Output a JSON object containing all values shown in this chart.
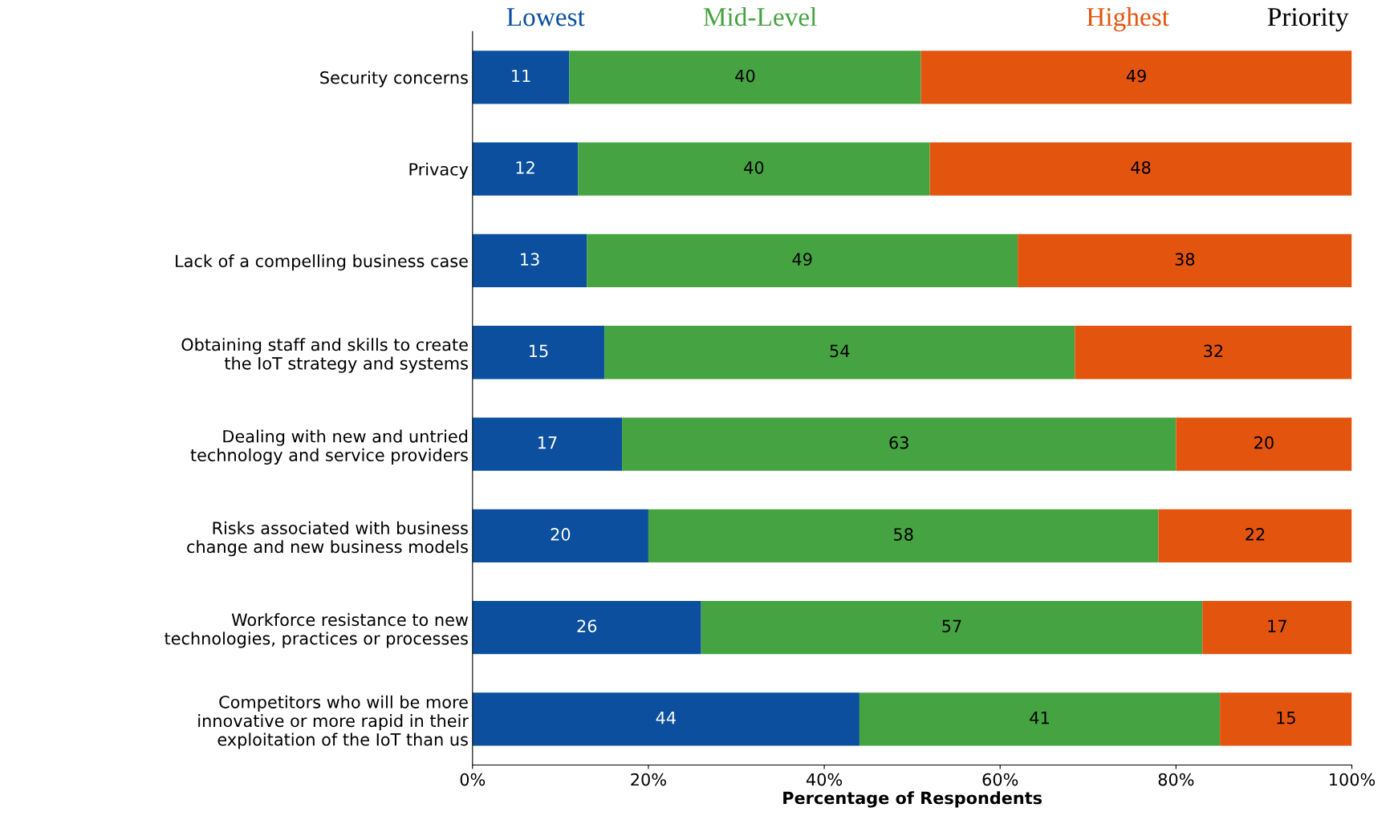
{
  "chart_data": {
    "type": "bar",
    "orientation": "horizontal",
    "stacked": true,
    "legend": "top",
    "legend_title": "Priority",
    "xlabel": "Percentage of Respondents",
    "categories": [
      "Security concerns",
      "Privacy",
      "Lack of a compelling business case",
      "Obtaining staff and skills to create\nthe IoT strategy and systems",
      "Dealing with new and untried\ntechnology and service providers",
      "Risks associated with business\nchange and new business models",
      "Workforce resistance to new\ntechnologies, practices or processes",
      "Competitors who will be more\ninnovative or more rapid in their\nexploitation of the IoT than us"
    ],
    "series": [
      {
        "name": "Lowest",
        "color": "#0b4f9e",
        "values": [
          11,
          12,
          13,
          15,
          17,
          20,
          26,
          44
        ],
        "value_labels": [
          "11",
          "12",
          "13",
          "15",
          "17",
          "20",
          "26",
          "44"
        ]
      },
      {
        "name": "Mid-Level",
        "color": "#46a341",
        "values": [
          40,
          40,
          49,
          53.5,
          63,
          58,
          57,
          41
        ],
        "value_labels": [
          "40",
          "40",
          "49",
          "54",
          "63",
          "58",
          "57",
          "41"
        ]
      },
      {
        "name": "Highest",
        "color": "#e3540f",
        "values": [
          49,
          48,
          38,
          31.5,
          20,
          22,
          17,
          15
        ],
        "value_labels": [
          "49",
          "48",
          "38",
          "32",
          "20",
          "22",
          "17",
          "15"
        ]
      }
    ],
    "xlim": [
      0,
      100
    ],
    "xticks": [
      {
        "value": 0,
        "label": "0%"
      },
      {
        "value": 20,
        "label": "20%"
      },
      {
        "value": 40,
        "label": "40%"
      },
      {
        "value": 60,
        "label": "60%"
      },
      {
        "value": 80,
        "label": "80%"
      },
      {
        "value": 100,
        "label": "100%"
      }
    ],
    "grid": false
  }
}
